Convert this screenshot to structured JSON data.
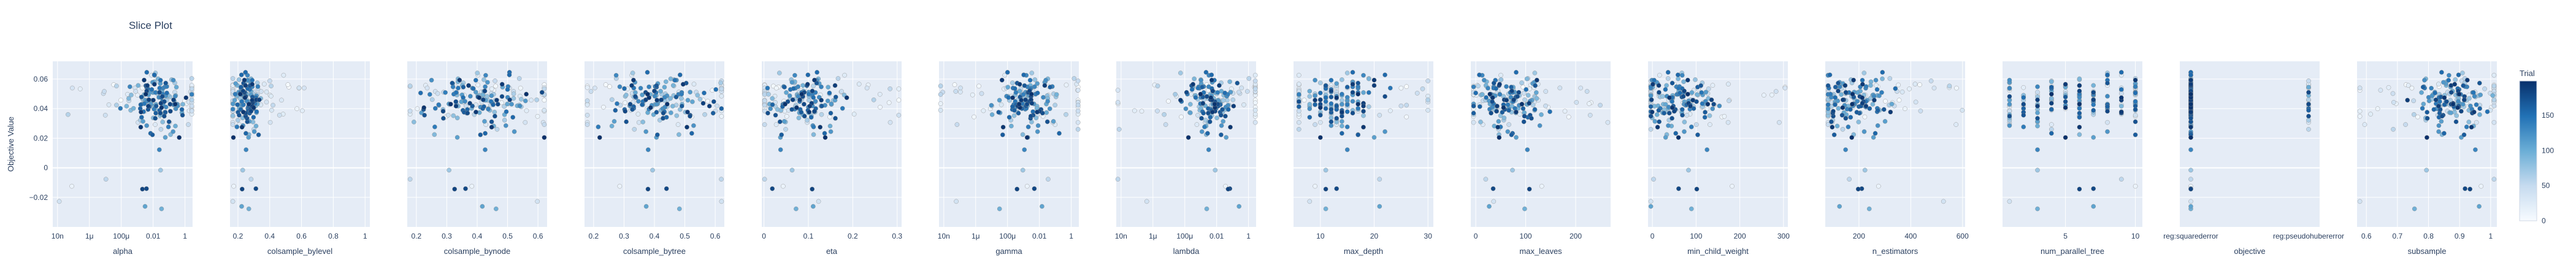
{
  "title": "Slice Plot",
  "chart_data": {
    "type": "scatter",
    "title": "Slice Plot",
    "ylabel": "Objective Value",
    "ylim": [
      -0.04,
      0.072
    ],
    "y_ticks": [
      -0.02,
      0,
      0.02,
      0.04,
      0.06
    ],
    "y_tick_labels": [
      "−0.02",
      "0",
      "0.02",
      "0.04",
      "0.06"
    ],
    "colorbar": {
      "title": "Trial",
      "ticks": [
        0,
        50,
        100,
        150
      ],
      "range": [
        0,
        199
      ],
      "colors": [
        "#f7fbff",
        "#c6dbef",
        "#6baed6",
        "#2171b5",
        "#08306b"
      ]
    },
    "panels": [
      {
        "xlabel": "alpha",
        "scale": "log",
        "xlim": [
          5e-09,
          3
        ],
        "ticks": [
          1e-08,
          1e-06,
          0.0001,
          0.01,
          1
        ],
        "tick_labels": [
          "10n",
          "1μ",
          "100μ",
          "0.01",
          "1"
        ],
        "center": 0.02,
        "spread": 1.6,
        "cluster": 0.9
      },
      {
        "xlabel": "colsample_bylevel",
        "scale": "linear",
        "xlim": [
          0.15,
          1.03
        ],
        "ticks": [
          0.2,
          0.4,
          0.6,
          0.8,
          1
        ],
        "tick_labels": [
          "0.2",
          "0.4",
          "0.6",
          "0.8",
          "1"
        ],
        "center": 0.25,
        "spread": 0.12,
        "cluster": 0.04
      },
      {
        "xlabel": "colsample_bynode",
        "scale": "linear",
        "xlim": [
          0.17,
          0.63
        ],
        "ticks": [
          0.2,
          0.3,
          0.4,
          0.5,
          0.6
        ],
        "tick_labels": [
          "0.2",
          "0.3",
          "0.4",
          "0.5",
          "0.6"
        ],
        "center": 0.4,
        "spread": 0.11,
        "cluster": 0.1
      },
      {
        "xlabel": "colsample_bytree",
        "scale": "linear",
        "xlim": [
          0.17,
          0.63
        ],
        "ticks": [
          0.2,
          0.3,
          0.4,
          0.5,
          0.6
        ],
        "tick_labels": [
          "0.2",
          "0.3",
          "0.4",
          "0.5",
          "0.6"
        ],
        "center": 0.42,
        "spread": 0.1,
        "cluster": 0.08
      },
      {
        "xlabel": "eta",
        "scale": "linear",
        "xlim": [
          -0.005,
          0.31
        ],
        "ticks": [
          0,
          0.1,
          0.2,
          0.3
        ],
        "tick_labels": [
          "0",
          "0.1",
          "0.2",
          "0.3"
        ],
        "center": 0.09,
        "spread": 0.07,
        "cluster": 0.04
      },
      {
        "xlabel": "gamma",
        "scale": "log",
        "xlim": [
          5e-09,
          3
        ],
        "ticks": [
          1e-08,
          1e-06,
          0.0001,
          0.01,
          1
        ],
        "tick_labels": [
          "10n",
          "1μ",
          "100μ",
          "0.01",
          "1"
        ],
        "center": 0.002,
        "spread": 1.5,
        "cluster": 0.9
      },
      {
        "xlabel": "lambda",
        "scale": "log",
        "xlim": [
          5e-09,
          3
        ],
        "ticks": [
          1e-08,
          1e-06,
          0.0001,
          0.01,
          1
        ],
        "tick_labels": [
          "10n",
          "1μ",
          "100μ",
          "0.01",
          "1"
        ],
        "center": 0.004,
        "spread": 1.5,
        "cluster": 0.8
      },
      {
        "xlabel": "max_depth",
        "scale": "linear",
        "xlim": [
          5,
          31
        ],
        "ticks": [
          10,
          20,
          30
        ],
        "tick_labels": [
          "10",
          "20",
          "30"
        ],
        "center": 14,
        "spread": 6,
        "cluster": 4,
        "discrete": true
      },
      {
        "xlabel": "max_leaves",
        "scale": "linear",
        "xlim": [
          -10,
          270
        ],
        "ticks": [
          0,
          100,
          200
        ],
        "tick_labels": [
          "0",
          "100",
          "200"
        ],
        "center": 60,
        "spread": 60,
        "cluster": 35
      },
      {
        "xlabel": "min_child_weight",
        "scale": "linear",
        "xlim": [
          -10,
          310
        ],
        "ticks": [
          0,
          100,
          200,
          300
        ],
        "tick_labels": [
          "0",
          "100",
          "200",
          "300"
        ],
        "center": 60,
        "spread": 70,
        "cluster": 40
      },
      {
        "xlabel": "n_estimators",
        "scale": "linear",
        "xlim": [
          70,
          610
        ],
        "ticks": [
          200,
          400,
          600
        ],
        "tick_labels": [
          "200",
          "400",
          "600"
        ],
        "center": 180,
        "spread": 120,
        "cluster": 70
      },
      {
        "xlabel": "num_parallel_tree",
        "scale": "linear",
        "xlim": [
          0.5,
          10.5
        ],
        "ticks": [
          5,
          10
        ],
        "tick_labels": [
          "5",
          "10"
        ],
        "center": 6,
        "spread": 3,
        "cluster": 3,
        "discrete": true
      },
      {
        "xlabel": "objective",
        "scale": "category",
        "categories": [
          "reg:squarederror",
          "reg:pseudohubererror"
        ],
        "tick_labels": [
          "reg:squarederror",
          "reg:pseudohubererror"
        ],
        "center": 0,
        "weight": 0.85
      },
      {
        "xlabel": "subsample",
        "scale": "linear",
        "xlim": [
          0.57,
          1.02
        ],
        "ticks": [
          0.6,
          0.7,
          0.8,
          0.9,
          1
        ],
        "tick_labels": [
          "0.6",
          "0.7",
          "0.8",
          "0.9",
          "1"
        ],
        "center": 0.88,
        "spread": 0.12,
        "cluster": 0.06
      }
    ],
    "n_trials": 200
  }
}
